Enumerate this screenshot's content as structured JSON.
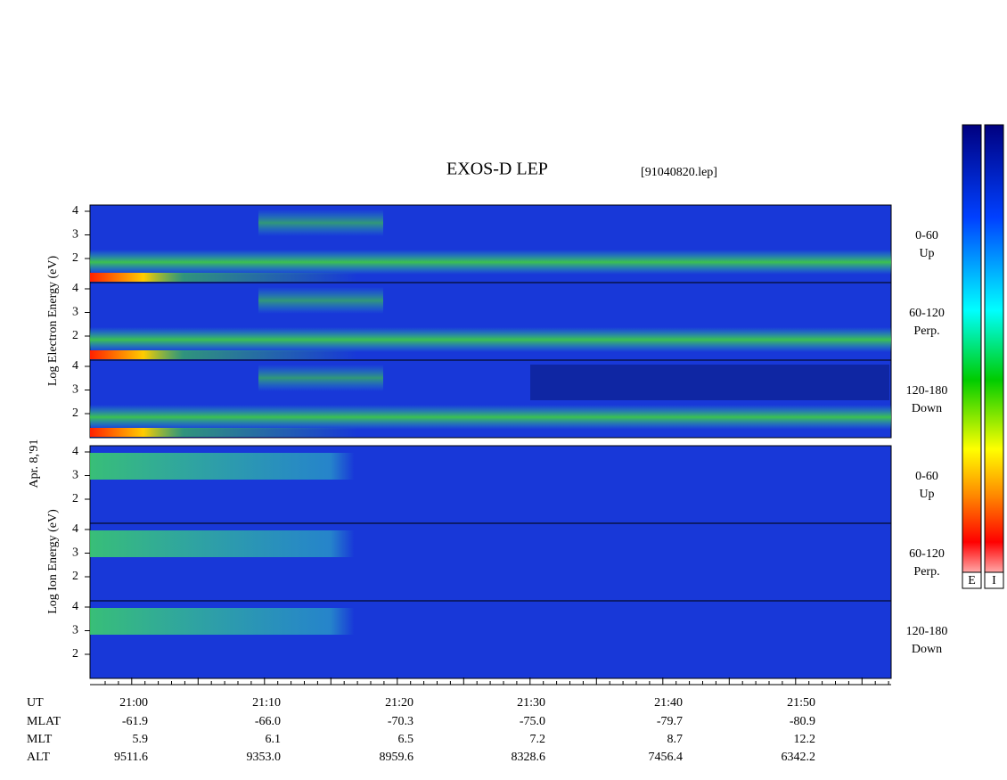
{
  "title": "EXOS-D LEP",
  "file_label": "[91040820.lep]",
  "date_label": "Apr. 8,'91",
  "electron_axis_label": "Log  Electron  Energy (eV)",
  "ion_axis_label": "Log  Ion  Energy (eV)",
  "yticks": [
    2,
    3,
    4
  ],
  "electron_panels": [
    {
      "range": "0-60",
      "direction": "Up"
    },
    {
      "range": "60-120",
      "direction": "Perp."
    },
    {
      "range": "120-180",
      "direction": "Down"
    }
  ],
  "ion_panels": [
    {
      "range": "0-60",
      "direction": "Up"
    },
    {
      "range": "60-120",
      "direction": "Perp."
    },
    {
      "range": "120-180",
      "direction": "Down"
    }
  ],
  "colorbar_labels": [
    "E",
    "I"
  ],
  "orbit_table": [
    {
      "name": "UT",
      "values": [
        "21:00",
        "21:10",
        "21:20",
        "21:30",
        "21:40",
        "21:50"
      ]
    },
    {
      "name": "MLAT",
      "values": [
        "-61.9",
        "-66.0",
        "-70.3",
        "-75.0",
        "-79.7",
        "-80.9"
      ]
    },
    {
      "name": "MLT",
      "values": [
        "5.9",
        "6.1",
        "6.5",
        "7.2",
        "8.7",
        "12.2"
      ]
    },
    {
      "name": "ALT",
      "values": [
        "9511.6",
        "9353.0",
        "8959.6",
        "8328.6",
        "7456.4",
        "6342.2"
      ]
    }
  ]
}
